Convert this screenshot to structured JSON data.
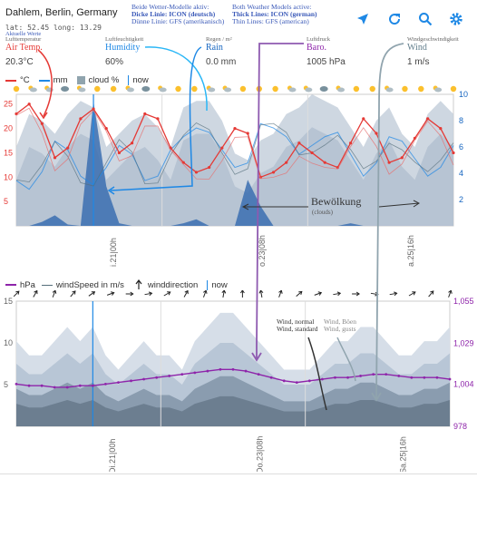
{
  "header": {
    "location": "Dahlem, Berlin, Germany",
    "coords": "lat: 52.45 long: 13.29",
    "current_values_label": "Aktuelle Werte"
  },
  "notes": {
    "de_title": "Beide Wetter-Modelle aktiv:",
    "de_thick": "Dicke Linie: ICON (deutsch)",
    "de_thin": "Dünne Linie: GFS (amerikanisch)",
    "en_title": "Both Weather Models active:",
    "en_thick": "Thick Lines: ICON (german)",
    "en_thin": "Thin Lines: GFS (american)"
  },
  "toolbar": {
    "location_icon": "location-arrow-icon",
    "refresh_icon": "refresh-icon",
    "search_icon": "search-icon",
    "settings_icon": "gear-icon"
  },
  "metrics": {
    "temp": {
      "small": "Lufttemperatur",
      "title": "Air Temp.",
      "value": "20.3°C",
      "color": "#e53935"
    },
    "humidity": {
      "small": "Luftfeuchtigkeit",
      "title": "Humidity",
      "value": "60%",
      "color": "#1e88e5"
    },
    "rain": {
      "small": "Regen / m²",
      "title": "Rain",
      "value": "0.0 mm",
      "color": "#1565c0"
    },
    "baro": {
      "small": "Luftdruck",
      "title": "Baro.",
      "value": "1005 hPa",
      "color": "#8e24aa"
    },
    "wind": {
      "small": "Windgeschwindigkeit",
      "title": "Wind",
      "value": "1 m/s",
      "color": "#607d8b"
    }
  },
  "legend_top": {
    "temp": "°C",
    "rain": "mm",
    "cloud": "cloud %",
    "now": "now"
  },
  "legend_bottom": {
    "hpa": "hPa",
    "wind": "windSpeed in m/s",
    "winddir": "winddirection",
    "now": "now"
  },
  "annotations": {
    "clouds_de": "Bewölkung",
    "clouds_en": "(clouds)",
    "wind_normal": "Wind, normal",
    "wind_standard": "Wind, standard",
    "wind_boen": "Wind, Böen",
    "wind_gusts": "Wind, gusts"
  },
  "chart_data": [
    {
      "type": "line",
      "title": "",
      "x_tick_labels": [
        "i.21|00h",
        "o.23|08h",
        "a.25|16h"
      ],
      "ylim_left": [
        0,
        27
      ],
      "yticks_left": [
        5,
        10,
        15,
        20,
        25
      ],
      "ylim_right": [
        0,
        10
      ],
      "yticks_right": [
        2,
        4,
        6,
        8,
        10
      ],
      "series": [
        {
          "name": "°C",
          "values": [
            23,
            25,
            21,
            14,
            16,
            22,
            24,
            20,
            15,
            17,
            23,
            22,
            16,
            13,
            11,
            12,
            16,
            20,
            19,
            10,
            11,
            13,
            17,
            15,
            13,
            12,
            17,
            22,
            19,
            13,
            14,
            18,
            22,
            20,
            15
          ]
        },
        {
          "name": "cloud %",
          "values": [
            60,
            85,
            80,
            70,
            85,
            95,
            90,
            60,
            70,
            80,
            85,
            75,
            60,
            90,
            95,
            95,
            80,
            55,
            50,
            65,
            70,
            85,
            90,
            100,
            95,
            90,
            75,
            60,
            80,
            90,
            70,
            60,
            85,
            95,
            85
          ]
        },
        {
          "name": "mm",
          "values": [
            0,
            0,
            0.3,
            0.8,
            0.1,
            0,
            9.5,
            3,
            0.2,
            0,
            0,
            0,
            0,
            0.2,
            0.5,
            0,
            0,
            0,
            3.5,
            1.5,
            0,
            0,
            0,
            0,
            0,
            0,
            0.2,
            0,
            0,
            0,
            0,
            0,
            0,
            0,
            0
          ]
        }
      ]
    },
    {
      "type": "line",
      "title": "",
      "x_tick_labels": [
        "Di.21|00h",
        "Do.23|08h",
        "Sa.25|16h"
      ],
      "ylim_left": [
        0,
        15
      ],
      "yticks_left": [
        5,
        10,
        15
      ],
      "yticks_right": [
        "1,055",
        "1,029",
        "1,004",
        "978"
      ],
      "series": [
        {
          "name": "hPa",
          "values": [
            1004,
            1003,
            1003,
            1002,
            1002,
            1003,
            1003,
            1004,
            1005,
            1006,
            1007,
            1008,
            1009,
            1010,
            1011,
            1012,
            1013,
            1013,
            1012,
            1010,
            1008,
            1006,
            1005,
            1006,
            1007,
            1008,
            1008,
            1009,
            1010,
            1010,
            1009,
            1008,
            1008,
            1008,
            1007
          ]
        },
        {
          "name": "windSpeed in m/s",
          "values": [
            6,
            5,
            5,
            6,
            7,
            6,
            7,
            5,
            4,
            5,
            6,
            5,
            5,
            4,
            6,
            7,
            8,
            8,
            7,
            6,
            5,
            4,
            4,
            4,
            5,
            6,
            6,
            7,
            7,
            6,
            5,
            5,
            6,
            6,
            7
          ]
        }
      ]
    }
  ],
  "colors": {
    "temp": "#e53935",
    "rain": "#1565c0",
    "cloud": "#b0bec5",
    "pressure": "#8e24aa",
    "arrow_purple": "#8e5ab0",
    "arrow_blue": "#1e88e5",
    "arrow_gray": "#90a4ae"
  }
}
